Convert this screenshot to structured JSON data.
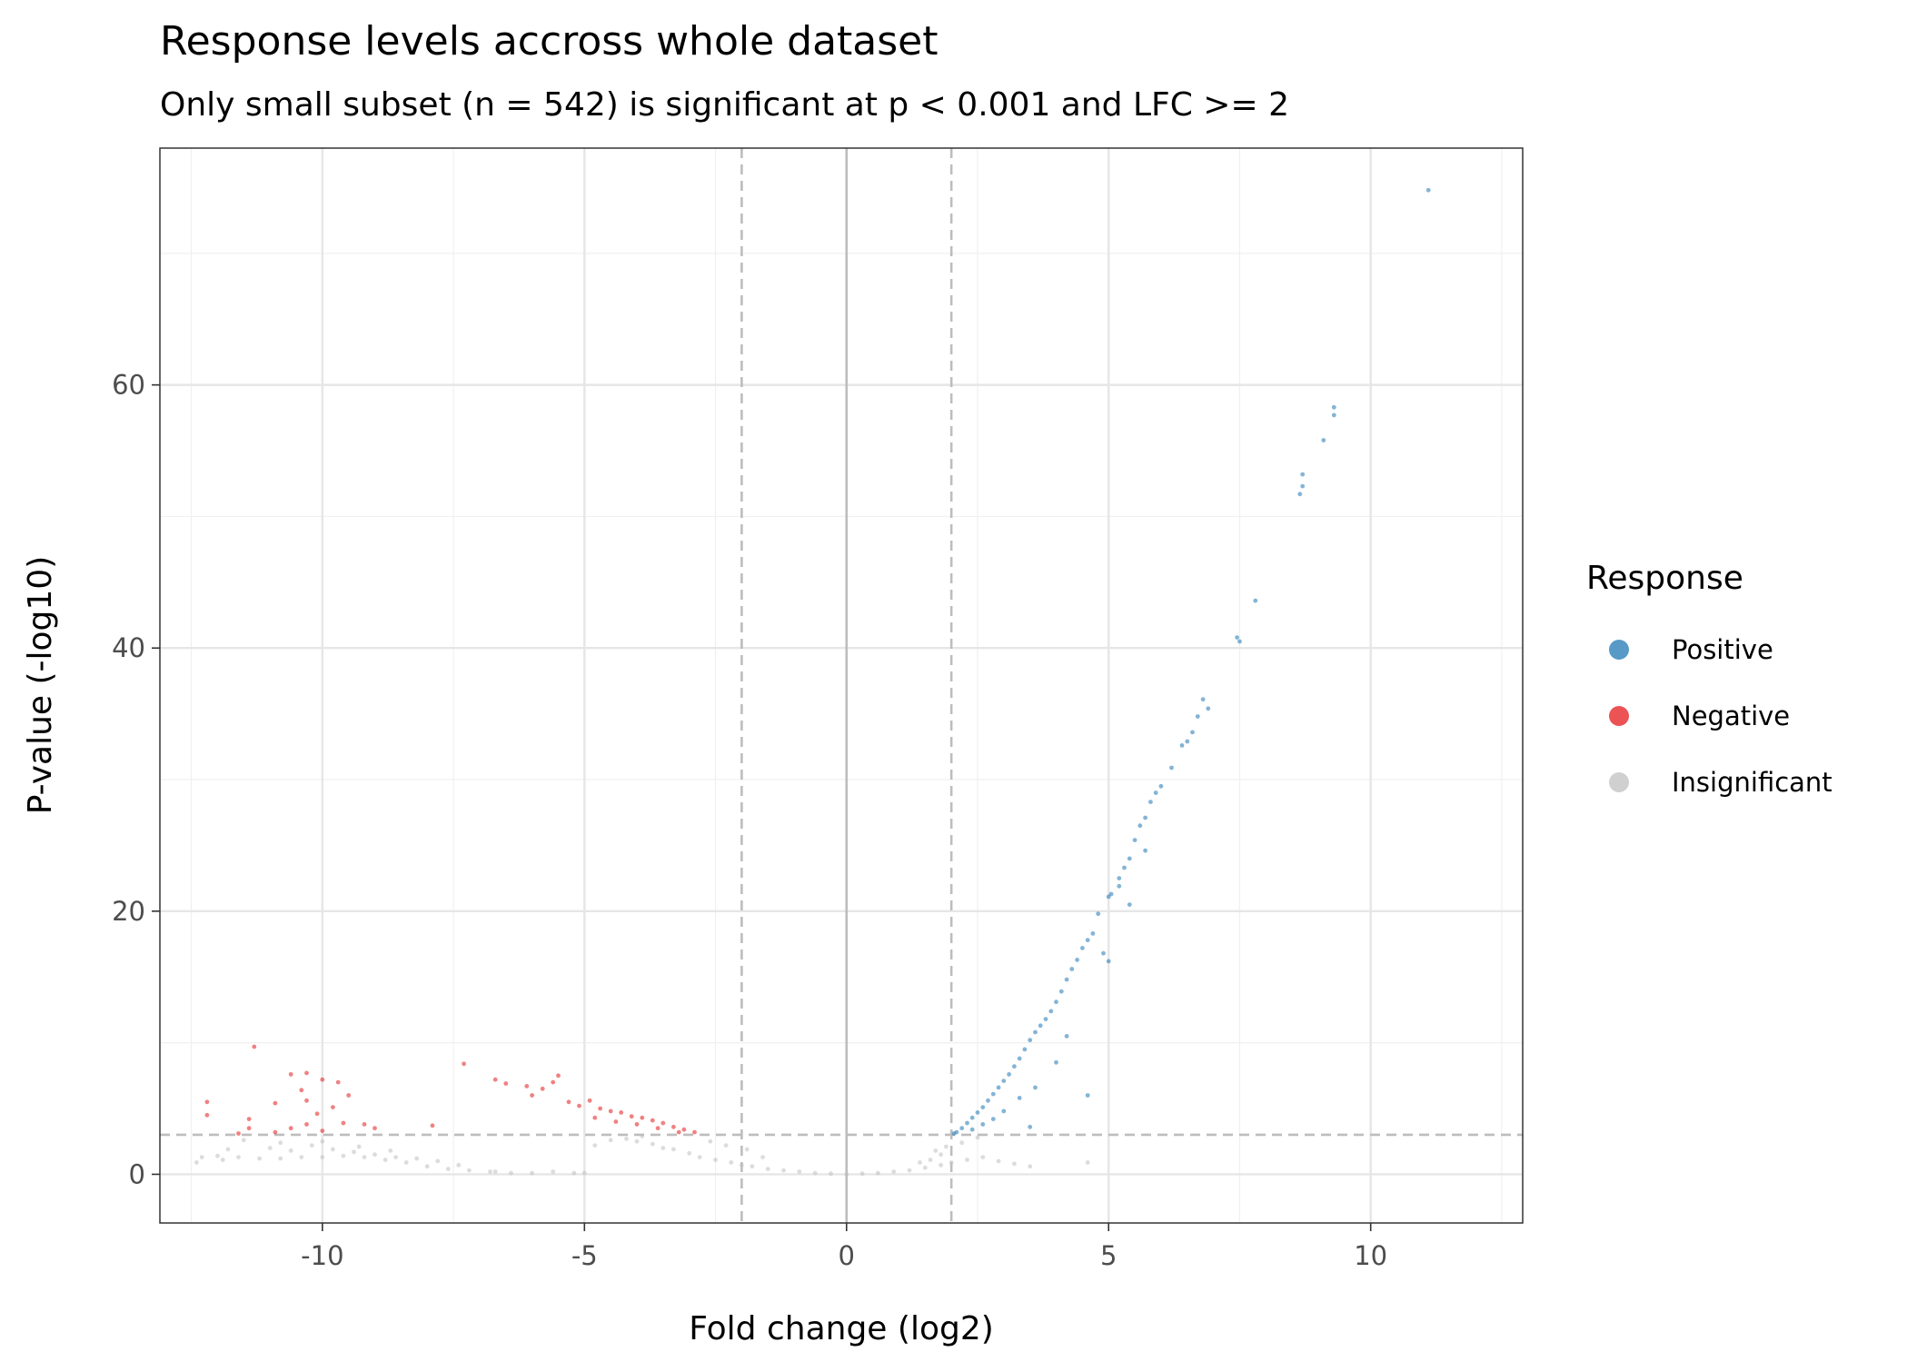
{
  "chart_data": {
    "type": "scatter",
    "title": "Response levels accross whole dataset",
    "subtitle": "Only small subset (n = 542) is significant at p < 0.001 and LFC >= 2",
    "xlabel": "Fold change (log2)",
    "ylabel": "P-value (-log10)",
    "xlim": [
      -13.1,
      12.9
    ],
    "ylim": [
      -3.7,
      78
    ],
    "x_ticks": [
      -10,
      -5,
      0,
      5,
      10
    ],
    "x_tick_labels": [
      "-10",
      "-5",
      "0",
      "5",
      "10"
    ],
    "y_ticks": [
      0,
      20,
      40,
      60
    ],
    "y_tick_labels": [
      "0",
      "20",
      "40",
      "60"
    ],
    "grid": true,
    "thresholds": {
      "lfc": 2,
      "neg_log10_p": 3
    },
    "legend": {
      "title": "Response",
      "position": "right",
      "entries": [
        {
          "label": "Positive",
          "color": "#1f77b4"
        },
        {
          "label": "Negative",
          "color": "#e41a1c"
        },
        {
          "label": "Insignificant",
          "color": "#c0c0c0"
        }
      ]
    },
    "series": [
      {
        "name": "Positive",
        "color": "#1f77b4",
        "points": [
          [
            11.1,
            74.8
          ],
          [
            9.3,
            58.3
          ],
          [
            9.3,
            57.7
          ],
          [
            9.1,
            55.8
          ],
          [
            8.7,
            53.2
          ],
          [
            8.7,
            52.3
          ],
          [
            8.65,
            51.7
          ],
          [
            7.8,
            43.6
          ],
          [
            7.45,
            40.8
          ],
          [
            7.5,
            40.5
          ],
          [
            6.8,
            36.1
          ],
          [
            6.9,
            35.4
          ],
          [
            6.7,
            34.8
          ],
          [
            6.6,
            33.6
          ],
          [
            6.5,
            32.9
          ],
          [
            6.4,
            32.6
          ],
          [
            6.2,
            30.9
          ],
          [
            6.0,
            29.5
          ],
          [
            5.9,
            29.0
          ],
          [
            5.8,
            28.3
          ],
          [
            5.7,
            27.1
          ],
          [
            5.6,
            26.5
          ],
          [
            5.5,
            25.4
          ],
          [
            5.4,
            24.0
          ],
          [
            5.3,
            23.3
          ],
          [
            5.2,
            22.5
          ],
          [
            5.05,
            21.3
          ],
          [
            5.0,
            21.1
          ],
          [
            5.4,
            20.5
          ],
          [
            4.8,
            19.8
          ],
          [
            4.7,
            18.3
          ],
          [
            4.5,
            17.2
          ],
          [
            4.6,
            17.8
          ],
          [
            4.4,
            16.3
          ],
          [
            4.3,
            15.6
          ],
          [
            4.2,
            14.8
          ],
          [
            4.1,
            13.9
          ],
          [
            4.0,
            13.1
          ],
          [
            3.9,
            12.4
          ],
          [
            3.8,
            11.8
          ],
          [
            3.7,
            11.3
          ],
          [
            3.6,
            10.8
          ],
          [
            3.5,
            10.2
          ],
          [
            3.4,
            9.5
          ],
          [
            3.3,
            8.8
          ],
          [
            3.2,
            8.2
          ],
          [
            3.1,
            7.6
          ],
          [
            3.0,
            7.1
          ],
          [
            2.9,
            6.6
          ],
          [
            2.8,
            6.1
          ],
          [
            2.7,
            5.6
          ],
          [
            2.6,
            5.1
          ],
          [
            2.5,
            4.7
          ],
          [
            2.4,
            4.3
          ],
          [
            2.3,
            3.9
          ],
          [
            2.2,
            3.5
          ],
          [
            2.1,
            3.2
          ],
          [
            2.05,
            3.1
          ],
          [
            4.2,
            10.5
          ],
          [
            4.0,
            8.5
          ],
          [
            3.6,
            6.6
          ],
          [
            4.6,
            6.0
          ],
          [
            3.3,
            5.8
          ],
          [
            3.0,
            4.8
          ],
          [
            2.8,
            4.2
          ],
          [
            2.6,
            3.8
          ],
          [
            2.4,
            3.4
          ],
          [
            3.5,
            3.6
          ],
          [
            5.0,
            16.2
          ],
          [
            4.9,
            16.8
          ],
          [
            5.2,
            21.9
          ],
          [
            5.7,
            24.6
          ]
        ]
      },
      {
        "name": "Negative",
        "color": "#e41a1c",
        "points": [
          [
            -11.3,
            9.7
          ],
          [
            -12.2,
            5.5
          ],
          [
            -12.2,
            4.5
          ],
          [
            -11.4,
            4.2
          ],
          [
            -11.4,
            3.5
          ],
          [
            -10.6,
            7.6
          ],
          [
            -10.3,
            7.7
          ],
          [
            -10.9,
            5.4
          ],
          [
            -10.4,
            6.4
          ],
          [
            -10.3,
            5.6
          ],
          [
            -10.0,
            7.2
          ],
          [
            -9.7,
            7.0
          ],
          [
            -9.5,
            6.0
          ],
          [
            -10.1,
            4.6
          ],
          [
            -9.8,
            5.1
          ],
          [
            -9.6,
            3.9
          ],
          [
            -9.2,
            3.8
          ],
          [
            -9.0,
            3.5
          ],
          [
            -10.9,
            3.2
          ],
          [
            -10.6,
            3.5
          ],
          [
            -10.3,
            3.8
          ],
          [
            -10.0,
            3.3
          ],
          [
            -7.3,
            8.4
          ],
          [
            -6.7,
            7.2
          ],
          [
            -6.5,
            6.9
          ],
          [
            -6.1,
            6.7
          ],
          [
            -5.8,
            6.5
          ],
          [
            -5.5,
            7.5
          ],
          [
            -5.6,
            7.0
          ],
          [
            -5.1,
            5.2
          ],
          [
            -4.9,
            5.6
          ],
          [
            -4.7,
            5.0
          ],
          [
            -4.5,
            4.8
          ],
          [
            -4.3,
            4.7
          ],
          [
            -4.1,
            4.4
          ],
          [
            -3.9,
            4.3
          ],
          [
            -3.7,
            4.1
          ],
          [
            -3.5,
            3.9
          ],
          [
            -3.3,
            3.6
          ],
          [
            -3.1,
            3.4
          ],
          [
            -2.9,
            3.2
          ],
          [
            -4.8,
            4.3
          ],
          [
            -4.4,
            4.0
          ],
          [
            -4.0,
            3.8
          ],
          [
            -3.6,
            3.5
          ],
          [
            -3.2,
            3.2
          ],
          [
            -6.0,
            6.0
          ],
          [
            -5.3,
            5.5
          ],
          [
            -7.9,
            3.7
          ],
          [
            -11.6,
            3.1
          ]
        ]
      },
      {
        "name": "Insignificant",
        "color": "#c0c0c0",
        "points": [
          [
            -12.3,
            1.3
          ],
          [
            -12.0,
            1.4
          ],
          [
            -11.6,
            1.3
          ],
          [
            -11.2,
            1.2
          ],
          [
            -10.8,
            1.2
          ],
          [
            -10.4,
            1.3
          ],
          [
            -10.0,
            1.3
          ],
          [
            -9.6,
            1.4
          ],
          [
            -9.2,
            1.3
          ],
          [
            -8.8,
            1.1
          ],
          [
            -8.4,
            0.9
          ],
          [
            -8.0,
            0.6
          ],
          [
            -7.6,
            0.4
          ],
          [
            -7.2,
            0.3
          ],
          [
            -6.8,
            0.2
          ],
          [
            -6.4,
            0.1
          ],
          [
            -6.0,
            0.1
          ],
          [
            -5.6,
            0.2
          ],
          [
            -5.2,
            0.1
          ],
          [
            -11.8,
            1.9
          ],
          [
            -11.0,
            2.0
          ],
          [
            -10.6,
            1.8
          ],
          [
            -10.2,
            2.2
          ],
          [
            -9.8,
            1.9
          ],
          [
            -9.4,
            1.7
          ],
          [
            -9.0,
            1.5
          ],
          [
            -8.6,
            1.3
          ],
          [
            -8.2,
            1.2
          ],
          [
            -7.8,
            1.0
          ],
          [
            -7.4,
            0.7
          ],
          [
            -11.5,
            2.6
          ],
          [
            -10.8,
            2.4
          ],
          [
            -10.0,
            2.5
          ],
          [
            -9.3,
            2.1
          ],
          [
            -8.7,
            1.8
          ],
          [
            -12.4,
            0.9
          ],
          [
            -11.9,
            1.1
          ],
          [
            -4.8,
            2.2
          ],
          [
            -4.5,
            2.6
          ],
          [
            -4.2,
            2.7
          ],
          [
            -4.0,
            2.5
          ],
          [
            -3.7,
            2.3
          ],
          [
            -3.5,
            2.0
          ],
          [
            -3.3,
            1.9
          ],
          [
            -3.0,
            1.6
          ],
          [
            -2.8,
            1.3
          ],
          [
            -2.5,
            1.1
          ],
          [
            -2.2,
            0.9
          ],
          [
            -2.0,
            0.7
          ],
          [
            -1.8,
            0.6
          ],
          [
            -1.5,
            0.4
          ],
          [
            -1.2,
            0.3
          ],
          [
            -0.9,
            0.2
          ],
          [
            -0.6,
            0.1
          ],
          [
            -0.3,
            0.05
          ],
          [
            0.0,
            0.0
          ],
          [
            0.3,
            0.05
          ],
          [
            0.6,
            0.1
          ],
          [
            0.9,
            0.2
          ],
          [
            1.2,
            0.3
          ],
          [
            1.5,
            0.5
          ],
          [
            1.8,
            0.7
          ],
          [
            2.0,
            0.9
          ],
          [
            2.3,
            1.1
          ],
          [
            2.6,
            1.3
          ],
          [
            2.9,
            1.0
          ],
          [
            3.2,
            0.8
          ],
          [
            3.5,
            0.6
          ],
          [
            1.6,
            1.1
          ],
          [
            1.8,
            1.5
          ],
          [
            1.9,
            2.1
          ],
          [
            1.7,
            1.8
          ],
          [
            1.4,
            0.9
          ],
          [
            -3.9,
            2.9
          ],
          [
            -2.6,
            2.5
          ],
          [
            -2.3,
            2.2
          ],
          [
            -1.9,
            1.9
          ],
          [
            -1.6,
            1.3
          ],
          [
            4.6,
            0.9
          ],
          [
            2.5,
            2.8
          ],
          [
            2.2,
            2.4
          ],
          [
            -6.7,
            0.2
          ],
          [
            -5.0,
            0.1
          ]
        ]
      }
    ]
  }
}
